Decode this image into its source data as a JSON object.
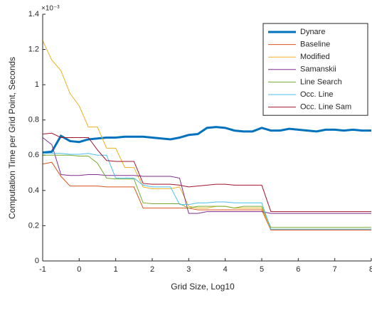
{
  "chart_data": {
    "type": "line",
    "xlabel": "Grid Size, Log10",
    "ylabel": "Computation Time per Grid Point, Seconds",
    "y_multiplier": "×10⁻³",
    "xlim": [
      -1,
      8
    ],
    "xticks": [
      -1,
      0,
      1,
      2,
      3,
      4,
      5,
      6,
      7,
      8
    ],
    "ylim": [
      0,
      1.4
    ],
    "yticks": [
      0,
      0.2,
      0.4,
      0.6,
      0.8,
      1,
      1.2,
      1.4
    ],
    "legend": "northeast",
    "x": [
      -1,
      -0.75,
      -0.5,
      -0.25,
      0,
      0.25,
      0.5,
      0.75,
      1,
      1.25,
      1.5,
      1.75,
      2,
      2.25,
      2.5,
      2.75,
      3,
      3.25,
      3.5,
      3.75,
      4,
      4.25,
      4.5,
      4.75,
      5,
      5.25,
      5.5,
      5.75,
      6,
      6.25,
      6.5,
      6.75,
      7,
      7.25,
      7.5,
      7.75,
      8
    ],
    "series": [
      {
        "name": "Dynare",
        "color": "#0072bd",
        "line_width": 3,
        "values": [
          0.615,
          0.62,
          0.71,
          0.68,
          0.675,
          0.69,
          0.695,
          0.7,
          0.7,
          0.705,
          0.705,
          0.705,
          0.7,
          0.695,
          0.69,
          0.7,
          0.715,
          0.72,
          0.755,
          0.76,
          0.755,
          0.74,
          0.735,
          0.735,
          0.755,
          0.74,
          0.74,
          0.75,
          0.745,
          0.74,
          0.735,
          0.745,
          0.745,
          0.74,
          0.745,
          0.74,
          0.74
        ]
      },
      {
        "name": "Baseline",
        "color": "#d95319",
        "line_width": 1,
        "values": [
          0.55,
          0.56,
          0.48,
          0.425,
          0.425,
          0.425,
          0.425,
          0.42,
          0.42,
          0.42,
          0.42,
          0.3,
          0.3,
          0.3,
          0.3,
          0.3,
          0.3,
          0.29,
          0.29,
          0.29,
          0.29,
          0.29,
          0.29,
          0.29,
          0.29,
          0.175,
          0.175,
          0.175,
          0.175,
          0.175,
          0.175,
          0.175,
          0.175,
          0.175,
          0.175,
          0.175,
          0.175
        ]
      },
      {
        "name": "Modified",
        "color": "#edb120",
        "line_width": 1,
        "values": [
          1.25,
          1.14,
          1.08,
          0.95,
          0.88,
          0.76,
          0.76,
          0.64,
          0.64,
          0.53,
          0.53,
          0.42,
          0.41,
          0.41,
          0.41,
          0.42,
          0.31,
          0.3,
          0.3,
          0.31,
          0.31,
          0.3,
          0.3,
          0.3,
          0.3,
          0.18,
          0.18,
          0.18,
          0.18,
          0.18,
          0.18,
          0.18,
          0.18,
          0.18,
          0.18,
          0.18,
          0.18
        ]
      },
      {
        "name": "Samanskii",
        "color": "#7e2f8e",
        "line_width": 1,
        "values": [
          0.7,
          0.66,
          0.49,
          0.485,
          0.485,
          0.49,
          0.49,
          0.485,
          0.485,
          0.485,
          0.485,
          0.48,
          0.48,
          0.48,
          0.48,
          0.47,
          0.27,
          0.27,
          0.28,
          0.28,
          0.28,
          0.28,
          0.28,
          0.28,
          0.28,
          0.27,
          0.27,
          0.27,
          0.27,
          0.27,
          0.27,
          0.27,
          0.27,
          0.27,
          0.27,
          0.27,
          0.27
        ]
      },
      {
        "name": "Line Search",
        "color": "#77ac30",
        "line_width": 1,
        "values": [
          0.6,
          0.6,
          0.6,
          0.6,
          0.595,
          0.595,
          0.555,
          0.47,
          0.465,
          0.465,
          0.465,
          0.33,
          0.325,
          0.325,
          0.325,
          0.325,
          0.3,
          0.31,
          0.31,
          0.31,
          0.31,
          0.3,
          0.31,
          0.31,
          0.31,
          0.19,
          0.19,
          0.19,
          0.19,
          0.19,
          0.19,
          0.19,
          0.19,
          0.19,
          0.19,
          0.19,
          0.19
        ]
      },
      {
        "name": "Occ. Line",
        "color": "#4dbeee",
        "line_width": 1,
        "values": [
          0.61,
          0.61,
          0.61,
          0.605,
          0.605,
          0.61,
          0.6,
          0.6,
          0.47,
          0.47,
          0.47,
          0.43,
          0.42,
          0.42,
          0.42,
          0.32,
          0.32,
          0.33,
          0.33,
          0.335,
          0.335,
          0.33,
          0.33,
          0.33,
          0.33,
          0.18,
          0.18,
          0.18,
          0.18,
          0.18,
          0.18,
          0.18,
          0.18,
          0.18,
          0.18,
          0.18,
          0.18
        ]
      },
      {
        "name": "Occ. Line Sam",
        "color": "#a2142f",
        "line_width": 1,
        "values": [
          0.72,
          0.725,
          0.7,
          0.7,
          0.7,
          0.7,
          0.63,
          0.57,
          0.565,
          0.565,
          0.565,
          0.44,
          0.435,
          0.435,
          0.435,
          0.43,
          0.42,
          0.425,
          0.43,
          0.435,
          0.435,
          0.43,
          0.43,
          0.43,
          0.43,
          0.28,
          0.28,
          0.28,
          0.28,
          0.28,
          0.28,
          0.28,
          0.28,
          0.28,
          0.28,
          0.28,
          0.28
        ]
      }
    ]
  }
}
